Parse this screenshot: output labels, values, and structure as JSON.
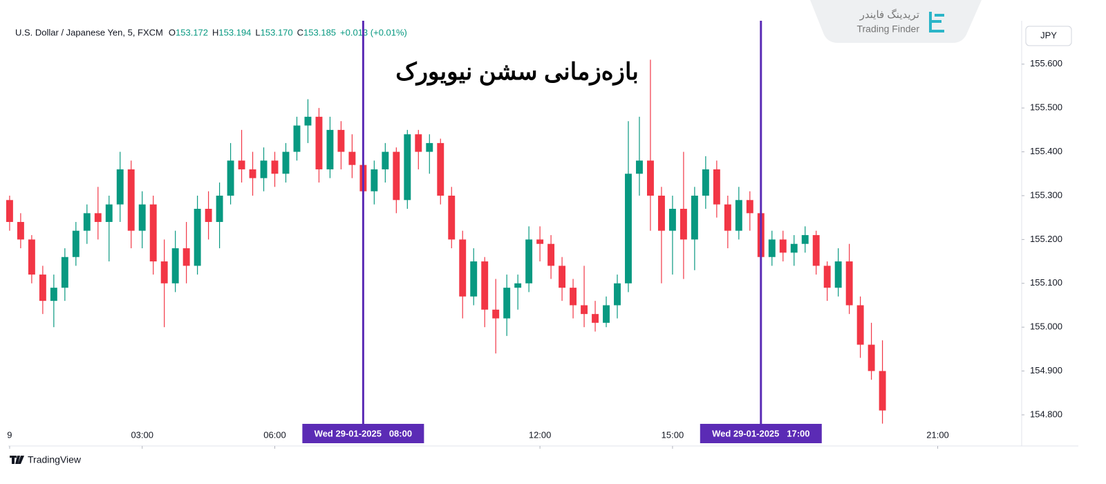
{
  "header": {
    "symbol": "U.S. Dollar / Japanese Yen, 5, FXCM",
    "fields": [
      {
        "k": "O",
        "v": "153.172"
      },
      {
        "k": "H",
        "v": "153.194"
      },
      {
        "k": "L",
        "v": "153.170"
      },
      {
        "k": "C",
        "v": "153.185"
      }
    ],
    "change": "+0.013 (+0.01%)"
  },
  "watermark": {
    "fa": "تریدینگ فایندر",
    "en": "Trading Finder"
  },
  "footer": "TradingView",
  "chart_data": {
    "type": "candlestick",
    "title": "بازه‌زمانی سشن نیویورک",
    "unit": "JPY",
    "up_color": "#089981",
    "down_color": "#f23645",
    "x": [
      0,
      0.25,
      0.5,
      0.75,
      1,
      1.25,
      1.5,
      1.75,
      2,
      2.25,
      2.5,
      2.75,
      3,
      3.25,
      3.5,
      3.75,
      4,
      4.25,
      4.5,
      4.75,
      5,
      5.25,
      5.5,
      5.75,
      6,
      6.25,
      6.5,
      6.75,
      7,
      7.25,
      7.5,
      7.75,
      8,
      8.25,
      8.5,
      8.75,
      9,
      9.25,
      9.5,
      9.75,
      10,
      10.25,
      10.5,
      10.75,
      11,
      11.25,
      11.5,
      11.75,
      12,
      12.25,
      12.5,
      12.75,
      13,
      13.25,
      13.5,
      13.75,
      14,
      14.25,
      14.5,
      14.75,
      15,
      15.25,
      15.5,
      15.75,
      16,
      16.25,
      16.5,
      16.75,
      17,
      17.25,
      17.5,
      17.75,
      18,
      18.25,
      18.5,
      18.75,
      19,
      19.25,
      19.5,
      19.75
    ],
    "open": [
      155.29,
      155.24,
      155.2,
      155.12,
      155.06,
      155.09,
      155.16,
      155.22,
      155.26,
      155.24,
      155.28,
      155.36,
      155.22,
      155.28,
      155.15,
      155.1,
      155.18,
      155.14,
      155.27,
      155.24,
      155.3,
      155.38,
      155.36,
      155.34,
      155.38,
      155.35,
      155.4,
      155.46,
      155.48,
      155.36,
      155.45,
      155.4,
      155.37,
      155.31,
      155.36,
      155.4,
      155.29,
      155.44,
      155.4,
      155.42,
      155.3,
      155.2,
      155.07,
      155.15,
      155.04,
      155.02,
      155.09,
      155.1,
      155.2,
      155.19,
      155.14,
      155.09,
      155.05,
      155.03,
      155.01,
      155.05,
      155.1,
      155.35,
      155.38,
      155.3,
      155.22,
      155.27,
      155.2,
      155.3,
      155.36,
      155.28,
      155.22,
      155.29,
      155.26,
      155.16,
      155.2,
      155.17,
      155.19,
      155.21,
      155.14,
      155.09,
      155.15,
      155.05,
      154.96,
      154.9
    ],
    "high": [
      155.3,
      155.26,
      155.21,
      155.14,
      155.12,
      155.18,
      155.24,
      155.28,
      155.32,
      155.3,
      155.4,
      155.38,
      155.31,
      155.3,
      155.2,
      155.22,
      155.24,
      155.3,
      155.31,
      155.33,
      155.42,
      155.45,
      155.4,
      155.41,
      155.4,
      155.42,
      155.48,
      155.52,
      155.5,
      155.48,
      155.47,
      155.44,
      155.4,
      155.38,
      155.42,
      155.41,
      155.45,
      155.45,
      155.44,
      155.43,
      155.32,
      155.22,
      155.18,
      155.16,
      155.11,
      155.12,
      155.12,
      155.23,
      155.23,
      155.21,
      155.16,
      155.11,
      155.14,
      155.06,
      155.07,
      155.12,
      155.47,
      155.48,
      155.61,
      155.32,
      155.3,
      155.4,
      155.32,
      155.39,
      155.38,
      155.3,
      155.32,
      155.31,
      155.27,
      155.22,
      155.22,
      155.21,
      155.23,
      155.22,
      155.15,
      155.18,
      155.19,
      155.07,
      155.01,
      154.97
    ],
    "low": [
      155.22,
      155.18,
      155.1,
      155.03,
      155.0,
      155.06,
      155.14,
      155.19,
      155.2,
      155.15,
      155.24,
      155.18,
      155.18,
      155.12,
      155.0,
      155.08,
      155.1,
      155.12,
      155.2,
      155.18,
      155.28,
      155.33,
      155.3,
      155.31,
      155.32,
      155.33,
      155.38,
      155.42,
      155.33,
      155.34,
      155.36,
      155.34,
      155.28,
      155.28,
      155.33,
      155.26,
      155.27,
      155.36,
      155.35,
      155.28,
      155.18,
      155.02,
      155.05,
      155.0,
      154.94,
      154.98,
      155.04,
      155.08,
      155.15,
      155.11,
      155.06,
      155.02,
      155.0,
      154.99,
      155.0,
      155.02,
      155.08,
      155.3,
      155.22,
      155.1,
      155.12,
      155.11,
      155.13,
      155.27,
      155.25,
      155.18,
      155.2,
      155.22,
      155.15,
      155.14,
      155.15,
      155.14,
      155.17,
      155.12,
      155.06,
      155.07,
      155.03,
      154.93,
      154.88,
      154.78
    ],
    "close": [
      155.24,
      155.2,
      155.12,
      155.06,
      155.09,
      155.16,
      155.22,
      155.26,
      155.24,
      155.28,
      155.36,
      155.22,
      155.28,
      155.15,
      155.1,
      155.18,
      155.14,
      155.27,
      155.24,
      155.3,
      155.38,
      155.36,
      155.34,
      155.38,
      155.35,
      155.4,
      155.46,
      155.48,
      155.36,
      155.45,
      155.4,
      155.37,
      155.31,
      155.36,
      155.4,
      155.29,
      155.44,
      155.4,
      155.42,
      155.3,
      155.2,
      155.07,
      155.15,
      155.04,
      155.02,
      155.09,
      155.1,
      155.2,
      155.19,
      155.14,
      155.09,
      155.05,
      155.03,
      155.01,
      155.05,
      155.1,
      155.35,
      155.38,
      155.3,
      155.22,
      155.27,
      155.2,
      155.3,
      155.36,
      155.28,
      155.22,
      155.29,
      155.26,
      155.16,
      155.2,
      155.17,
      155.19,
      155.21,
      155.14,
      155.09,
      155.15,
      155.05,
      154.96,
      154.9,
      154.81
    ],
    "xlim": [
      -0.03,
      22.9
    ],
    "ylim": [
      154.729,
      155.699
    ],
    "xticks": [
      {
        "value": 0,
        "label": "9"
      },
      {
        "value": 3,
        "label": "03:00"
      },
      {
        "value": 6,
        "label": "06:00"
      },
      {
        "value": 12,
        "label": "12:00"
      },
      {
        "value": 15,
        "label": "15:00"
      },
      {
        "value": 21,
        "label": "21:00"
      }
    ],
    "yticks": [
      {
        "value": 154.8,
        "label": "154.800"
      },
      {
        "value": 154.9,
        "label": "154.900"
      },
      {
        "value": 155.0,
        "label": "155.000"
      },
      {
        "value": 155.1,
        "label": "155.100"
      },
      {
        "value": 155.2,
        "label": "155.200"
      },
      {
        "value": 155.3,
        "label": "155.300"
      },
      {
        "value": 155.4,
        "label": "155.400"
      },
      {
        "value": 155.5,
        "label": "155.500"
      },
      {
        "value": 155.6,
        "label": "155.600"
      }
    ],
    "markers": [
      {
        "x": 8,
        "label": "Wed 29-01-2025   08:00",
        "color": "#5b2bb5"
      },
      {
        "x": 17,
        "label": "Wed 29-01-2025   17:00",
        "color": "#5b2bb5"
      }
    ]
  }
}
